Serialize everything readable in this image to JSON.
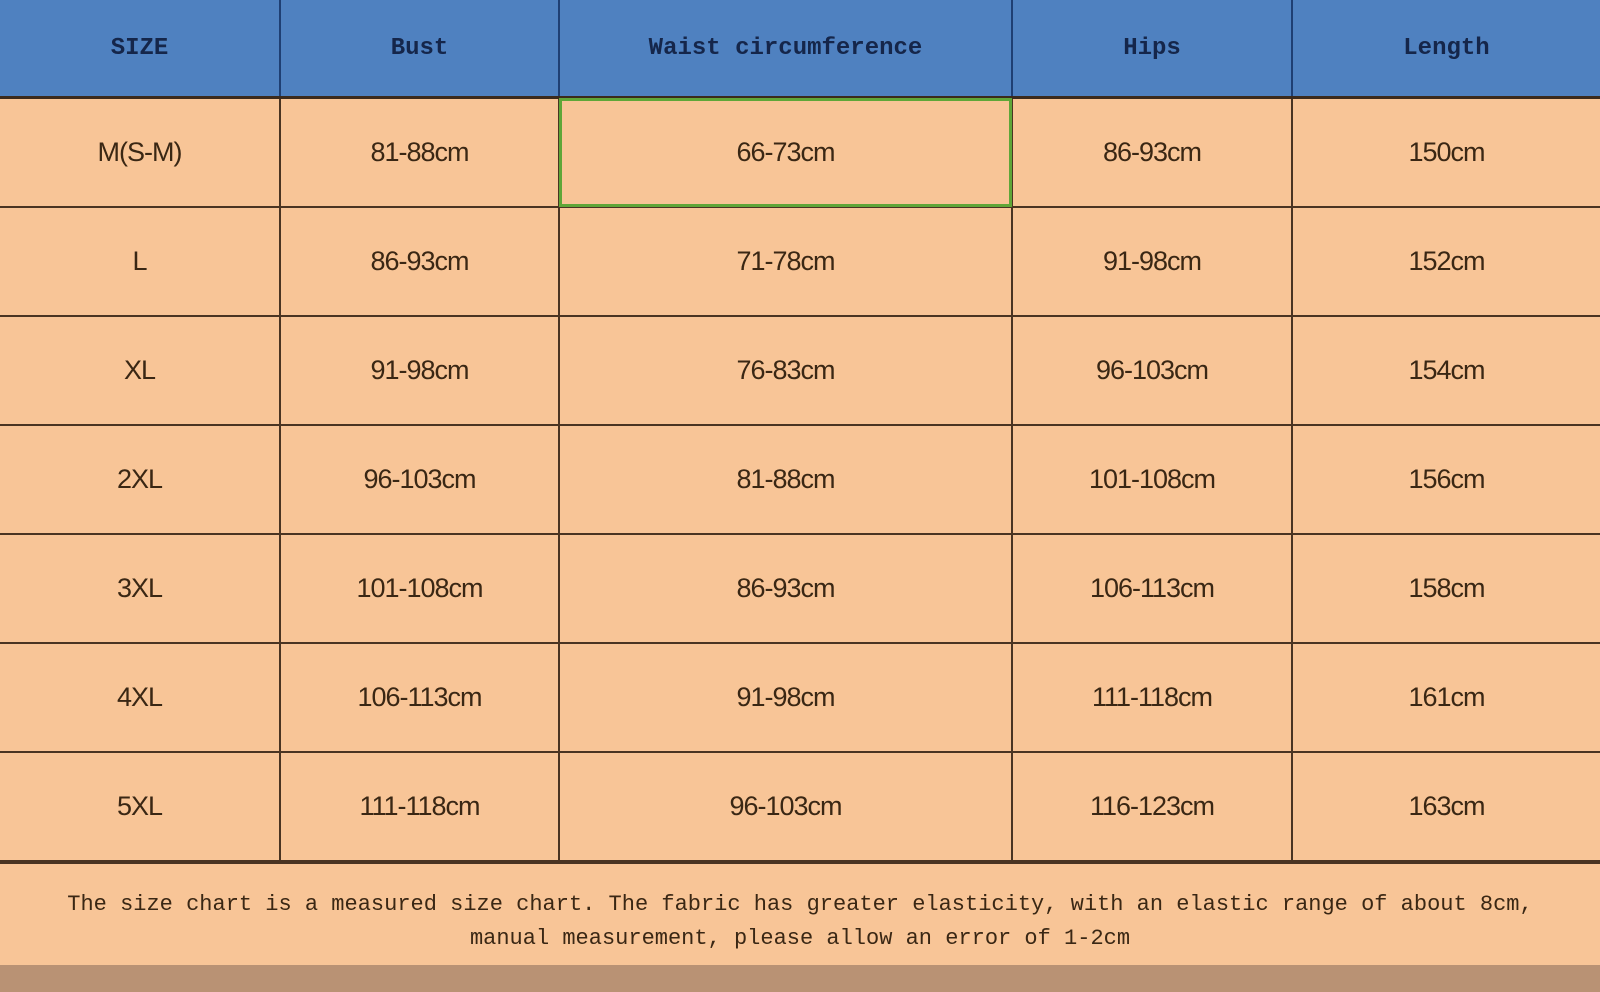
{
  "table": {
    "headers": [
      "SIZE",
      "Bust",
      "Waist circumference",
      "Hips",
      "Length"
    ],
    "rows": [
      [
        "M(S-M)",
        "81-88cm",
        "66-73cm",
        "86-93cm",
        "150cm"
      ],
      [
        "L",
        "86-93cm",
        "71-78cm",
        "91-98cm",
        "152cm"
      ],
      [
        "XL",
        "91-98cm",
        "76-83cm",
        "96-103cm",
        "154cm"
      ],
      [
        "2XL",
        "96-103cm",
        "81-88cm",
        "101-108cm",
        "156cm"
      ],
      [
        "3XL",
        "101-108cm",
        "86-93cm",
        "106-113cm",
        "158cm"
      ],
      [
        "4XL",
        "106-113cm",
        "91-98cm",
        "111-118cm",
        "161cm"
      ],
      [
        "5XL",
        "111-118cm",
        "96-103cm",
        "116-123cm",
        "163cm"
      ]
    ]
  },
  "note": {
    "line1": "The size chart is a measured size chart. The fabric has greater elasticity, with an elastic range of about 8cm,",
    "line2": "manual measurement, please allow an error of 1-2cm"
  },
  "colors": {
    "header": "#4f81c0",
    "body": "#f8c597",
    "highlight_border": "#5fa638"
  }
}
